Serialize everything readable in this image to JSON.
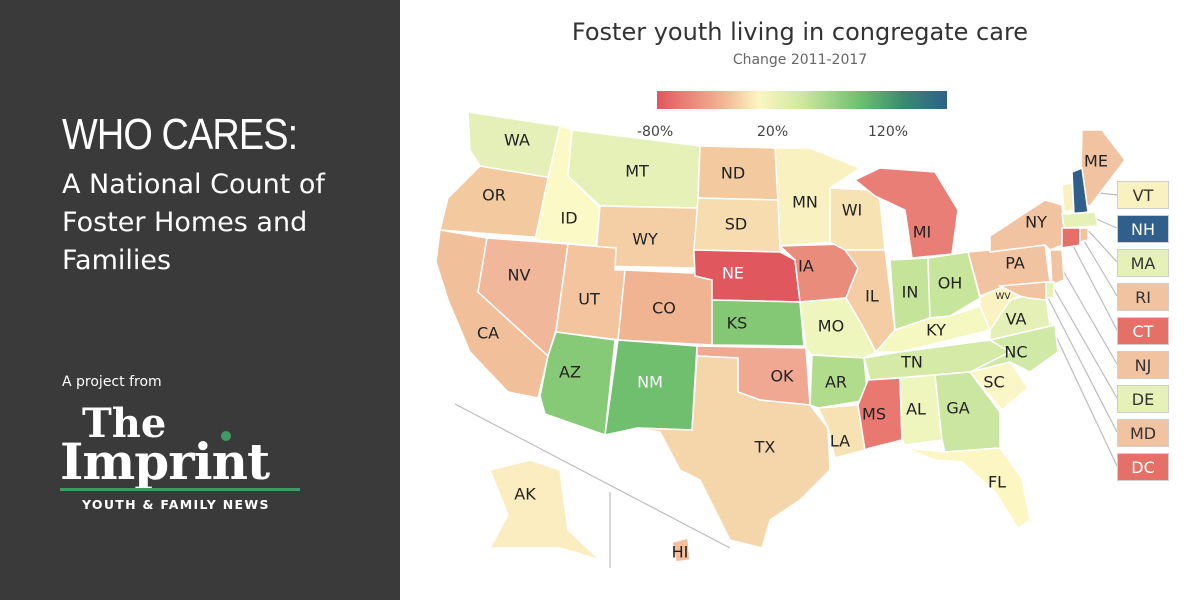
{
  "sidebar": {
    "headline": "WHO CARES:",
    "subhead": "A National Count of Foster Homes and Families",
    "project_from": "A project from",
    "logo_the": "The",
    "logo_imprint": "Imprint",
    "logo_tagline": "YOUTH & FAMILY NEWS",
    "accent_color": "#3f9a63"
  },
  "map": {
    "title": "Foster youth living in congregate care",
    "subtitle": "Change 2011-2017",
    "colorbar_ticks": [
      "-80%",
      "20%",
      "120%"
    ],
    "colorscale": [
      "#e0575e",
      "#f3c09a",
      "#fbf6c2",
      "#cfe7a0",
      "#6fbf6f",
      "#2f5f8a"
    ],
    "states": [
      {
        "abbr": "WA",
        "color": "#e4f0b8"
      },
      {
        "abbr": "OR",
        "color": "#f3caa0"
      },
      {
        "abbr": "CA",
        "color": "#f1c09a"
      },
      {
        "abbr": "ID",
        "color": "#fbf9c6"
      },
      {
        "abbr": "NV",
        "color": "#f0b79a"
      },
      {
        "abbr": "MT",
        "color": "#e6f1b8"
      },
      {
        "abbr": "WY",
        "color": "#f4cfa5"
      },
      {
        "abbr": "UT",
        "color": "#f3c49e"
      },
      {
        "abbr": "AZ",
        "color": "#86c977"
      },
      {
        "abbr": "CO",
        "color": "#f0b493"
      },
      {
        "abbr": "NM",
        "color": "#6fbf6f"
      },
      {
        "abbr": "ND",
        "color": "#f3c9a0"
      },
      {
        "abbr": "SD",
        "color": "#f6dcaf"
      },
      {
        "abbr": "NE",
        "color": "#e0575e"
      },
      {
        "abbr": "KS",
        "color": "#84c775"
      },
      {
        "abbr": "OK",
        "color": "#f0a892"
      },
      {
        "abbr": "TX",
        "color": "#f5d5aa"
      },
      {
        "abbr": "MN",
        "color": "#faf1c0"
      },
      {
        "abbr": "IA",
        "color": "#ea8c7c"
      },
      {
        "abbr": "MO",
        "color": "#eef6bd"
      },
      {
        "abbr": "AR",
        "color": "#b1dc8c"
      },
      {
        "abbr": "LA",
        "color": "#f7e2b4"
      },
      {
        "abbr": "WI",
        "color": "#f7e2b4"
      },
      {
        "abbr": "IL",
        "color": "#f4cda4"
      },
      {
        "abbr": "MI",
        "color": "#e87e76"
      },
      {
        "abbr": "IN",
        "color": "#c5e49a"
      },
      {
        "abbr": "OH",
        "color": "#c8e59c"
      },
      {
        "abbr": "KY",
        "color": "#f6f8c2"
      },
      {
        "abbr": "TN",
        "color": "#d4eaa6"
      },
      {
        "abbr": "MS",
        "color": "#e87870"
      },
      {
        "abbr": "AL",
        "color": "#eef6be"
      },
      {
        "abbr": "GA",
        "color": "#cbe6a0"
      },
      {
        "abbr": "FL",
        "color": "#fbf6c2"
      },
      {
        "abbr": "SC",
        "color": "#fbf6c6"
      },
      {
        "abbr": "NC",
        "color": "#d1e9a6"
      },
      {
        "abbr": "VA",
        "color": "#e4f0b5"
      },
      {
        "abbr": "WV",
        "color": "#faf2c0"
      },
      {
        "abbr": "PA",
        "color": "#f2c3a0"
      },
      {
        "abbr": "NY",
        "color": "#f2c3a0"
      },
      {
        "abbr": "ME",
        "color": "#f2c3a0"
      },
      {
        "abbr": "AK",
        "color": "#fbedc0"
      },
      {
        "abbr": "HI",
        "color": "#f2c09e"
      }
    ],
    "small_states": [
      {
        "abbr": "VT",
        "color": "#faf1c0"
      },
      {
        "abbr": "NH",
        "color": "#2f5f8a"
      },
      {
        "abbr": "MA",
        "color": "#e6f1b8"
      },
      {
        "abbr": "RI",
        "color": "#f2c3a0"
      },
      {
        "abbr": "CT",
        "color": "#e57068"
      },
      {
        "abbr": "NJ",
        "color": "#f2c3a0"
      },
      {
        "abbr": "DE",
        "color": "#e6f1b8"
      },
      {
        "abbr": "MD",
        "color": "#f2c3a0"
      },
      {
        "abbr": "DC",
        "color": "#e57068"
      }
    ]
  }
}
